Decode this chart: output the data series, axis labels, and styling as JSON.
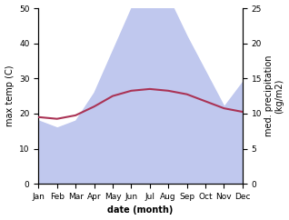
{
  "months": [
    "Jan",
    "Feb",
    "Mar",
    "Apr",
    "May",
    "Jun",
    "Jul",
    "Aug",
    "Sep",
    "Oct",
    "Nov",
    "Dec"
  ],
  "temp": [
    19.0,
    18.5,
    19.5,
    22.0,
    25.0,
    26.5,
    27.0,
    26.5,
    25.5,
    23.5,
    21.5,
    20.5
  ],
  "precip": [
    9.0,
    8.0,
    9.0,
    13.0,
    19.0,
    25.0,
    27.5,
    26.5,
    21.0,
    16.0,
    11.0,
    14.5
  ],
  "temp_color": "#aa3355",
  "precip_fill_color": "#c0c8ee",
  "temp_ylim": [
    0,
    50
  ],
  "precip_ylim": [
    0,
    25
  ],
  "temp_yticks": [
    0,
    10,
    20,
    30,
    40,
    50
  ],
  "precip_yticks": [
    0,
    5,
    10,
    15,
    20,
    25
  ],
  "ylabel_left": "max temp (C)",
  "ylabel_right": "med. precipitation\n(kg/m2)",
  "xlabel": "date (month)",
  "label_fontsize": 7,
  "tick_fontsize": 6.5
}
